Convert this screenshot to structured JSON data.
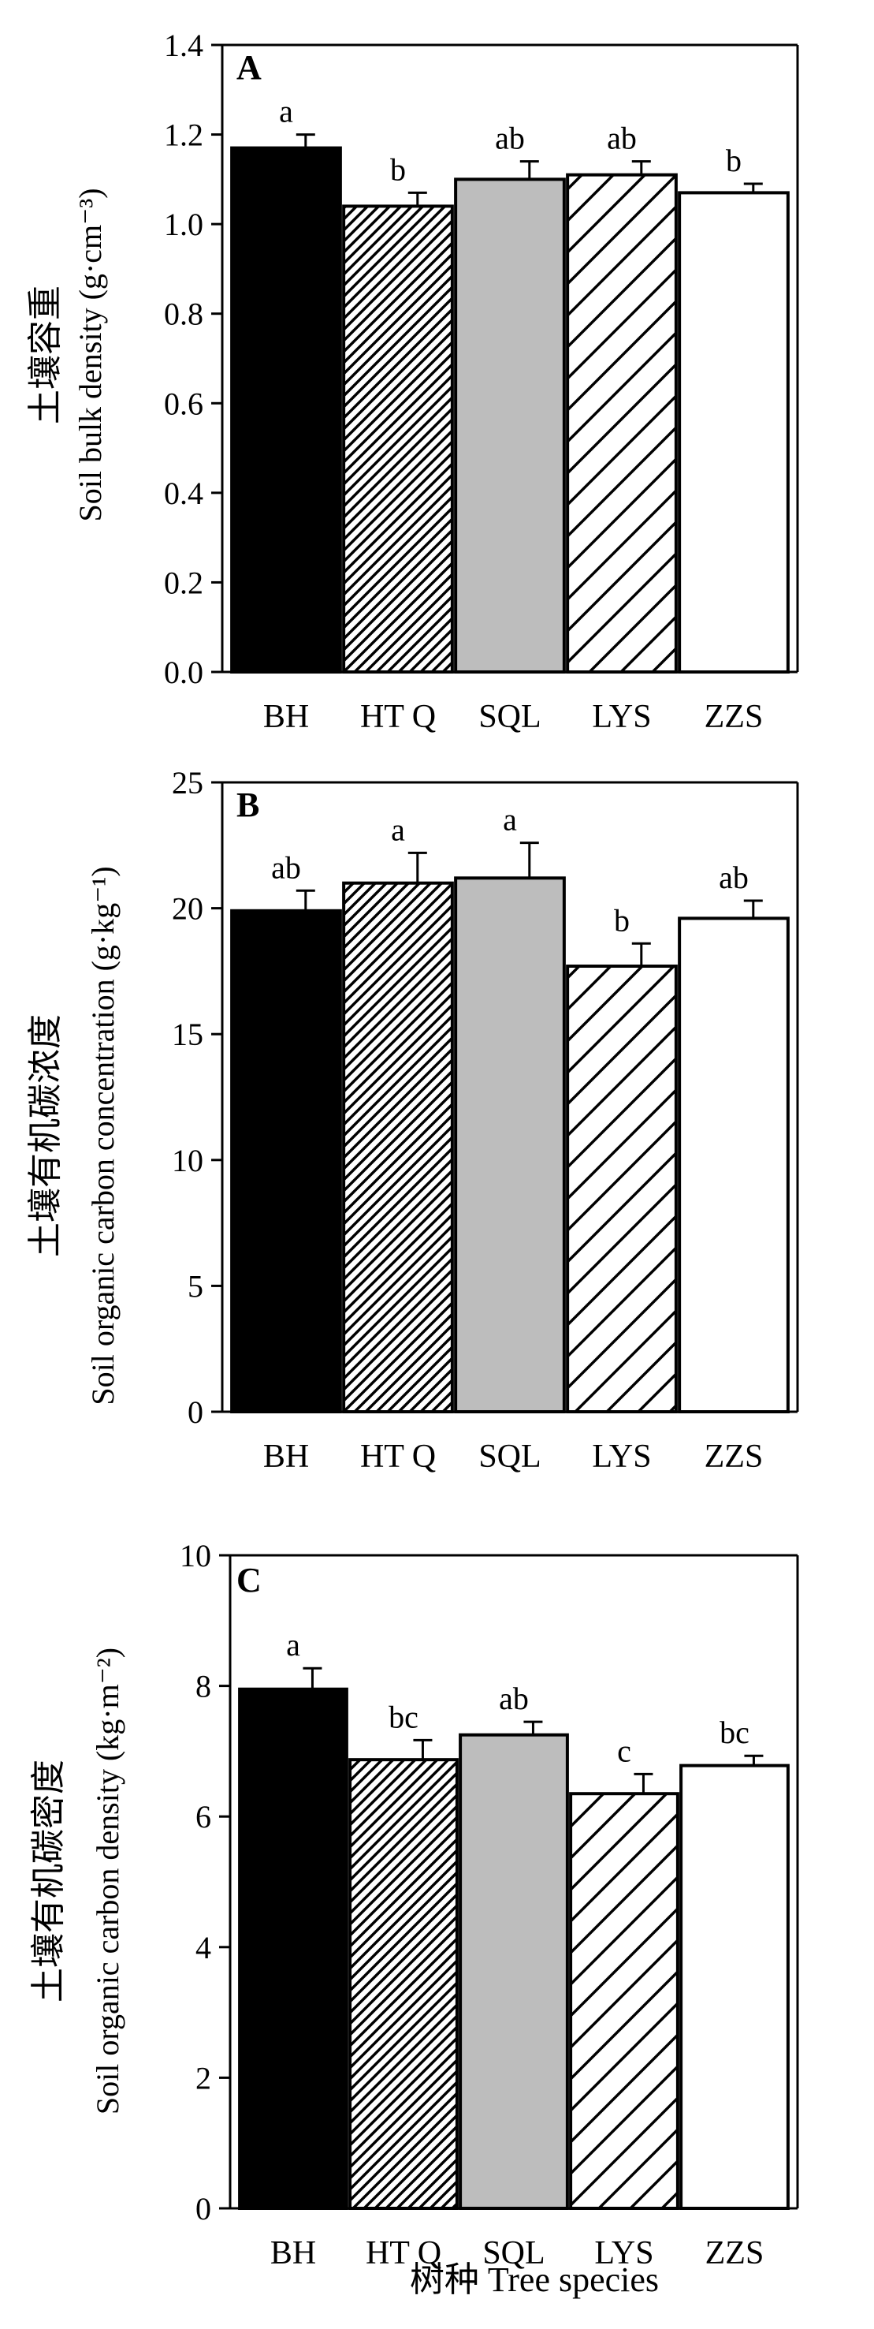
{
  "colors": {
    "black": "#000000",
    "gray": "#bdbdbd",
    "white": "#ffffff"
  },
  "figure_xlabel": "树种 Tree species",
  "chart_data": [
    {
      "type": "bar",
      "panel": "A",
      "title": "",
      "ylabel_cn": "土壤容重",
      "ylabel_en": "Soil bulk density (g·cm⁻³)",
      "ylim": [
        0,
        1.4
      ],
      "yticks": [
        0.0,
        0.2,
        0.4,
        0.6,
        0.8,
        1.0,
        1.2,
        1.4
      ],
      "ytick_labels": [
        "0.0",
        "0.2",
        "0.4",
        "0.6",
        "0.8",
        "1.0",
        "1.2",
        "1.4"
      ],
      "categories": [
        "BH",
        "HTQ",
        "SQL",
        "LYS",
        "ZZS"
      ],
      "category_labels": [
        "BH",
        "HT Q",
        "SQL",
        "LYS",
        "ZZS"
      ],
      "values": [
        1.17,
        1.04,
        1.1,
        1.11,
        1.07
      ],
      "errors": [
        0.03,
        0.03,
        0.04,
        0.03,
        0.02
      ],
      "significance": [
        "a",
        "b",
        "ab",
        "ab",
        "b"
      ],
      "patterns": [
        "solid-black",
        "dense-hatch",
        "solid-gray",
        "wide-hatch",
        "white"
      ],
      "grid": false
    },
    {
      "type": "bar",
      "panel": "B",
      "title": "",
      "ylabel_cn": "土壤有机碳浓度",
      "ylabel_en": "Soil organic carbon concentration (g·kg⁻¹)",
      "ylim": [
        0,
        25
      ],
      "yticks": [
        0,
        5,
        10,
        15,
        20,
        25
      ],
      "ytick_labels": [
        "0",
        "5",
        "10",
        "15",
        "20",
        "25"
      ],
      "categories": [
        "BH",
        "HTQ",
        "SQL",
        "LYS",
        "ZZS"
      ],
      "category_labels": [
        "BH",
        "HT Q",
        "SQL",
        "LYS",
        "ZZS"
      ],
      "values": [
        19.9,
        21.0,
        21.2,
        17.7,
        19.6
      ],
      "errors": [
        0.8,
        1.2,
        1.4,
        0.9,
        0.7
      ],
      "significance": [
        "ab",
        "a",
        "a",
        "b",
        "ab"
      ],
      "patterns": [
        "solid-black",
        "dense-hatch",
        "solid-gray",
        "wide-hatch",
        "white"
      ],
      "grid": false
    },
    {
      "type": "bar",
      "panel": "C",
      "title": "",
      "ylabel_cn": "土壤有机碳密度",
      "ylabel_en": "Soil organic carbon density (kg·m⁻²)",
      "ylim": [
        0,
        10
      ],
      "yticks": [
        0,
        2,
        4,
        6,
        8,
        10
      ],
      "ytick_labels": [
        "0",
        "2",
        "4",
        "6",
        "8",
        "10"
      ],
      "categories": [
        "BH",
        "HTQ",
        "SQL",
        "LYS",
        "ZZS"
      ],
      "category_labels": [
        "BH",
        "HT Q",
        "SQL",
        "LYS",
        "ZZS"
      ],
      "values": [
        7.95,
        6.87,
        7.25,
        6.35,
        6.78
      ],
      "errors": [
        0.32,
        0.3,
        0.2,
        0.3,
        0.15
      ],
      "significance": [
        "a",
        "bc",
        "ab",
        "c",
        "bc"
      ],
      "patterns": [
        "solid-black",
        "dense-hatch",
        "solid-gray",
        "wide-hatch",
        "white"
      ],
      "grid": false
    }
  ]
}
